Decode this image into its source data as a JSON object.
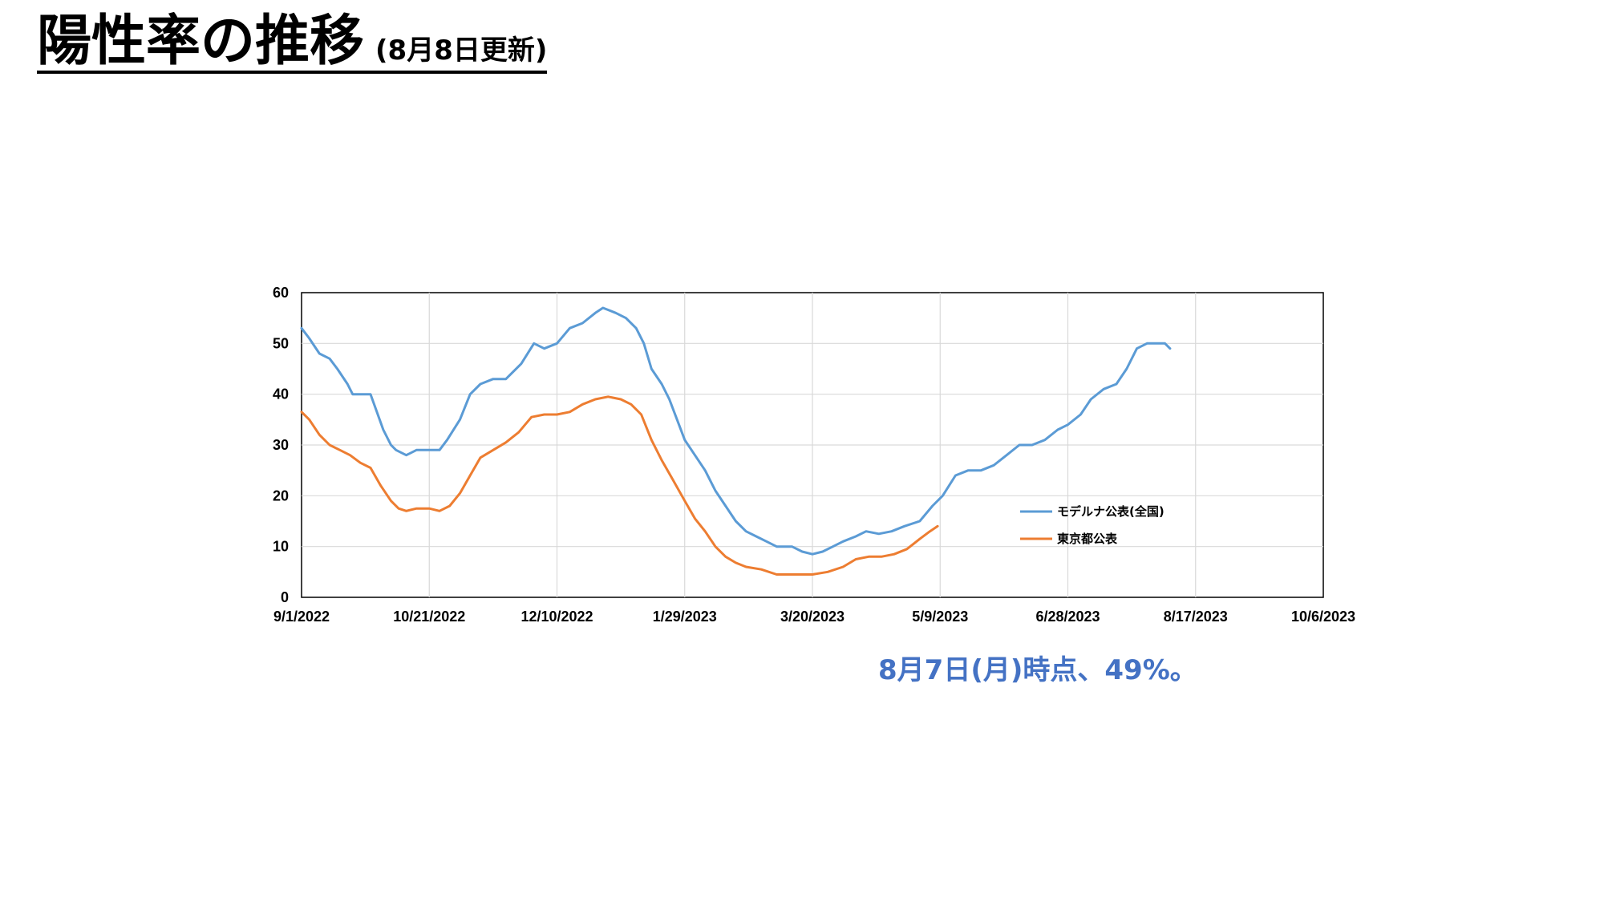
{
  "slide": {
    "title": "陽性率の推移",
    "subtitle": "(8月8日更新)",
    "note": "8月7日(月)時点、49%。"
  },
  "chart_data": {
    "type": "line",
    "title": "",
    "xlabel": "",
    "ylabel": "",
    "ylim": [
      0,
      60
    ],
    "yticks": [
      0,
      10,
      20,
      30,
      40,
      50,
      60
    ],
    "xlim": [
      "2022-09-01",
      "2023-10-06"
    ],
    "xtick_labels": [
      "9/1/2022",
      "10/21/2022",
      "12/10/2022",
      "1/29/2023",
      "3/20/2023",
      "5/9/2023",
      "6/28/2023",
      "8/17/2023",
      "10/6/2023"
    ],
    "grid": true,
    "legend_position": "right",
    "series": [
      {
        "name": "モデルナ公表(全国)",
        "color": "#5b9bd5",
        "points": [
          [
            "2022-09-01",
            53
          ],
          [
            "2022-09-04",
            51
          ],
          [
            "2022-09-08",
            48
          ],
          [
            "2022-09-12",
            47
          ],
          [
            "2022-09-15",
            45
          ],
          [
            "2022-09-19",
            42
          ],
          [
            "2022-09-21",
            40
          ],
          [
            "2022-09-25",
            40
          ],
          [
            "2022-09-28",
            40
          ],
          [
            "2022-10-03",
            33
          ],
          [
            "2022-10-06",
            30
          ],
          [
            "2022-10-08",
            29
          ],
          [
            "2022-10-12",
            28
          ],
          [
            "2022-10-16",
            29
          ],
          [
            "2022-10-21",
            29
          ],
          [
            "2022-10-25",
            29
          ],
          [
            "2022-10-28",
            31
          ],
          [
            "2022-11-02",
            35
          ],
          [
            "2022-11-06",
            40
          ],
          [
            "2022-11-10",
            42
          ],
          [
            "2022-11-15",
            43
          ],
          [
            "2022-11-20",
            43
          ],
          [
            "2022-11-26",
            46
          ],
          [
            "2022-12-01",
            50
          ],
          [
            "2022-12-05",
            49
          ],
          [
            "2022-12-10",
            50
          ],
          [
            "2022-12-15",
            53
          ],
          [
            "2022-12-20",
            54
          ],
          [
            "2022-12-25",
            56
          ],
          [
            "2022-12-28",
            57
          ],
          [
            "2023-01-02",
            56
          ],
          [
            "2023-01-06",
            55
          ],
          [
            "2023-01-10",
            53
          ],
          [
            "2023-01-13",
            50
          ],
          [
            "2023-01-16",
            45
          ],
          [
            "2023-01-20",
            42
          ],
          [
            "2023-01-23",
            39
          ],
          [
            "2023-01-29",
            31
          ],
          [
            "2023-02-02",
            28
          ],
          [
            "2023-02-06",
            25
          ],
          [
            "2023-02-10",
            21
          ],
          [
            "2023-02-14",
            18
          ],
          [
            "2023-02-18",
            15
          ],
          [
            "2023-02-22",
            13
          ],
          [
            "2023-02-26",
            12
          ],
          [
            "2023-03-02",
            11
          ],
          [
            "2023-03-06",
            10
          ],
          [
            "2023-03-12",
            10
          ],
          [
            "2023-03-16",
            9
          ],
          [
            "2023-03-20",
            8.5
          ],
          [
            "2023-03-24",
            9
          ],
          [
            "2023-03-28",
            10
          ],
          [
            "2023-04-01",
            11
          ],
          [
            "2023-04-06",
            12
          ],
          [
            "2023-04-10",
            13
          ],
          [
            "2023-04-15",
            12.5
          ],
          [
            "2023-04-20",
            13
          ],
          [
            "2023-04-25",
            14
          ],
          [
            "2023-05-01",
            15
          ],
          [
            "2023-05-06",
            18
          ],
          [
            "2023-05-10",
            20
          ],
          [
            "2023-05-15",
            24
          ],
          [
            "2023-05-20",
            25
          ],
          [
            "2023-05-25",
            25
          ],
          [
            "2023-05-30",
            26
          ],
          [
            "2023-06-04",
            28
          ],
          [
            "2023-06-09",
            30
          ],
          [
            "2023-06-14",
            30
          ],
          [
            "2023-06-19",
            31
          ],
          [
            "2023-06-24",
            33
          ],
          [
            "2023-06-28",
            34
          ],
          [
            "2023-07-03",
            36
          ],
          [
            "2023-07-07",
            39
          ],
          [
            "2023-07-12",
            41
          ],
          [
            "2023-07-17",
            42
          ],
          [
            "2023-07-21",
            45
          ],
          [
            "2023-07-25",
            49
          ],
          [
            "2023-07-29",
            50
          ],
          [
            "2023-08-02",
            50
          ],
          [
            "2023-08-05",
            50
          ],
          [
            "2023-08-07",
            49
          ]
        ]
      },
      {
        "name": "東京都公表",
        "color": "#ed7d31",
        "points": [
          [
            "2022-09-01",
            36.5
          ],
          [
            "2022-09-04",
            35
          ],
          [
            "2022-09-08",
            32
          ],
          [
            "2022-09-12",
            30
          ],
          [
            "2022-09-16",
            29
          ],
          [
            "2022-09-20",
            28
          ],
          [
            "2022-09-24",
            26.5
          ],
          [
            "2022-09-28",
            25.5
          ],
          [
            "2022-10-02",
            22
          ],
          [
            "2022-10-06",
            19
          ],
          [
            "2022-10-09",
            17.5
          ],
          [
            "2022-10-12",
            17
          ],
          [
            "2022-10-16",
            17.5
          ],
          [
            "2022-10-21",
            17.5
          ],
          [
            "2022-10-25",
            17
          ],
          [
            "2022-10-29",
            18
          ],
          [
            "2022-11-02",
            20.5
          ],
          [
            "2022-11-06",
            24
          ],
          [
            "2022-11-10",
            27.5
          ],
          [
            "2022-11-15",
            29
          ],
          [
            "2022-11-20",
            30.5
          ],
          [
            "2022-11-25",
            32.5
          ],
          [
            "2022-11-30",
            35.5
          ],
          [
            "2022-12-05",
            36
          ],
          [
            "2022-12-10",
            36
          ],
          [
            "2022-12-15",
            36.5
          ],
          [
            "2022-12-20",
            38
          ],
          [
            "2022-12-25",
            39
          ],
          [
            "2022-12-30",
            39.5
          ],
          [
            "2023-01-04",
            39
          ],
          [
            "2023-01-08",
            38
          ],
          [
            "2023-01-12",
            36
          ],
          [
            "2023-01-16",
            31
          ],
          [
            "2023-01-20",
            27
          ],
          [
            "2023-01-24",
            23.5
          ],
          [
            "2023-01-29",
            19
          ],
          [
            "2023-02-02",
            15.5
          ],
          [
            "2023-02-06",
            13
          ],
          [
            "2023-02-10",
            10
          ],
          [
            "2023-02-14",
            8
          ],
          [
            "2023-02-18",
            6.8
          ],
          [
            "2023-02-22",
            6
          ],
          [
            "2023-02-28",
            5.5
          ],
          [
            "2023-03-06",
            4.5
          ],
          [
            "2023-03-12",
            4.5
          ],
          [
            "2023-03-20",
            4.5
          ],
          [
            "2023-03-26",
            5
          ],
          [
            "2023-04-01",
            6
          ],
          [
            "2023-04-06",
            7.5
          ],
          [
            "2023-04-11",
            8
          ],
          [
            "2023-04-16",
            8
          ],
          [
            "2023-04-21",
            8.5
          ],
          [
            "2023-04-26",
            9.5
          ],
          [
            "2023-05-01",
            11.5
          ],
          [
            "2023-05-05",
            13
          ],
          [
            "2023-05-08",
            14
          ]
        ]
      }
    ]
  }
}
